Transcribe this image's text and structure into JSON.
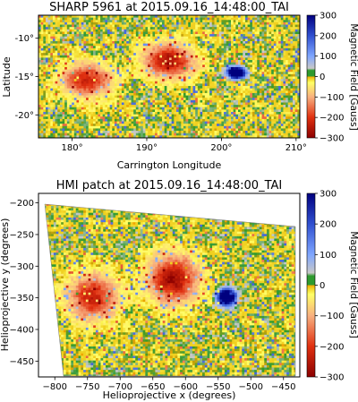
{
  "chart_data": [
    {
      "type": "heatmap",
      "title": "SHARP 5961 at 2015.09.16_14:48:00_TAI",
      "xlabel": "Carrington Longitude",
      "ylabel": "Latitude",
      "xlim": [
        175.5,
        210.5
      ],
      "ylim": [
        -23,
        -7
      ],
      "xticks": [
        180,
        190,
        200,
        210
      ],
      "xtick_labels": [
        "180°",
        "190°",
        "200°",
        "210°"
      ],
      "yticks": [
        -10,
        -15,
        -20
      ],
      "ytick_labels": [
        "-10°",
        "-15°",
        "-20°"
      ],
      "colorbar": {
        "label": "Magnetic Field [Gauss]",
        "range": [
          -300,
          300
        ],
        "ticks": [
          300,
          200,
          100,
          0,
          -100,
          -200,
          -300
        ],
        "tick_labels": [
          "300",
          "200",
          "100",
          "0",
          "−100",
          "−200",
          "−300"
        ]
      },
      "features": [
        {
          "kind": "sunspot",
          "polarity": "positive",
          "x": 202,
          "y": -14.5,
          "peak_gauss": 300
        },
        {
          "kind": "plage",
          "polarity": "negative",
          "x": 193,
          "y": -13,
          "peak_gauss": -300
        },
        {
          "kind": "plage",
          "polarity": "negative",
          "x": 182,
          "y": -15.5,
          "peak_gauss": -250
        }
      ]
    },
    {
      "type": "heatmap",
      "title": "HMI patch at 2015.09.16_14:48:00_TAI",
      "xlabel": "Helioprojective x (degrees)",
      "ylabel": "Helioprojective y (degrees)",
      "xlim": [
        -825,
        -425
      ],
      "ylim": [
        -475,
        -185
      ],
      "xticks": [
        -800,
        -750,
        -700,
        -650,
        -600,
        -550,
        -500,
        -450
      ],
      "xtick_labels": [
        "−800",
        "−750",
        "−700",
        "−650",
        "−600",
        "−550",
        "−500",
        "−450"
      ],
      "yticks": [
        -200,
        -250,
        -300,
        -350,
        -400,
        -450
      ],
      "ytick_labels": [
        "−200",
        "−250",
        "−300",
        "−350",
        "−400",
        "−450"
      ],
      "colorbar": {
        "label": "Magnetic Field [Gauss]",
        "range": [
          -300,
          300
        ],
        "ticks": [
          300,
          200,
          100,
          0,
          -100,
          -200,
          -300
        ],
        "tick_labels": [
          "300",
          "200",
          "100",
          "0",
          "−100",
          "−200",
          "−300"
        ]
      },
      "features": [
        {
          "kind": "sunspot",
          "polarity": "positive",
          "x": -537,
          "y": -345,
          "peak_gauss": 300
        },
        {
          "kind": "plage",
          "polarity": "negative",
          "x": -620,
          "y": -315,
          "peak_gauss": -300
        },
        {
          "kind": "plage",
          "polarity": "negative",
          "x": -745,
          "y": -345,
          "peak_gauss": -250
        }
      ]
    }
  ],
  "colormap": {
    "stops": [
      {
        "value": -300,
        "color": "#8b0000"
      },
      {
        "value": -200,
        "color": "#e03010"
      },
      {
        "value": -100,
        "color": "#f8b080"
      },
      {
        "value": -30,
        "color": "#ffff66"
      },
      {
        "value": -10,
        "color": "#f0d020"
      },
      {
        "value": 0,
        "color": "#f5a500"
      },
      {
        "value": 10,
        "color": "#2e9a2e"
      },
      {
        "value": 30,
        "color": "#c8c8c8"
      },
      {
        "value": 100,
        "color": "#7fa6ff"
      },
      {
        "value": 200,
        "color": "#3050d0"
      },
      {
        "value": 300,
        "color": "#00007f"
      }
    ]
  }
}
